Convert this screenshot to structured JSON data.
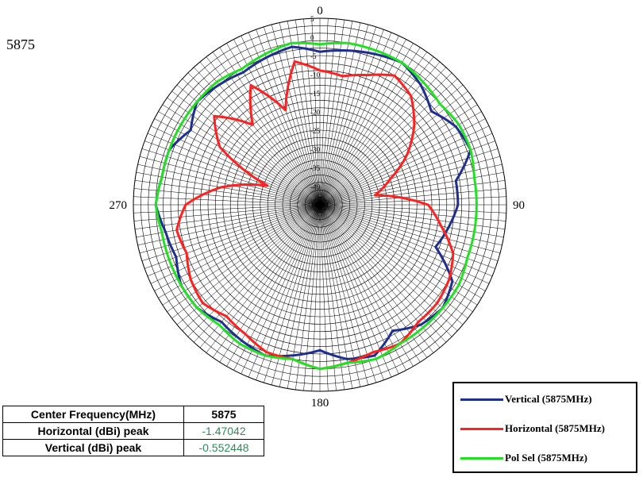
{
  "header": {
    "frequency_label": "5875"
  },
  "chart_data": {
    "type": "polar-line",
    "angle_labels": [
      "0",
      "90",
      "180",
      "270"
    ],
    "radial_tick_labels": [
      "5",
      "0",
      "-5",
      "-10",
      "-15",
      "-20",
      "-25",
      "-30",
      "-35",
      "-40"
    ],
    "r_range_dBi": [
      -45,
      5
    ],
    "angle_direction": "clockwise",
    "zero_at": "top",
    "grid": true,
    "legend_placement": "bottom-right",
    "angles_deg": [
      0,
      10,
      20,
      30,
      40,
      50,
      60,
      70,
      80,
      90,
      100,
      110,
      120,
      130,
      140,
      150,
      160,
      170,
      180,
      190,
      200,
      210,
      220,
      230,
      240,
      250,
      260,
      270,
      280,
      290,
      300,
      310,
      320,
      330,
      340,
      350
    ],
    "series": [
      {
        "name": "Vertical (5875MHz)",
        "color": "#1f2f8f",
        "values": [
          -4,
          -3,
          -2,
          -1,
          -3,
          -6,
          -3,
          -2,
          -8,
          -8,
          -10,
          -12,
          -4,
          -2,
          -3,
          -6,
          -2,
          -3,
          -6,
          -4,
          -2,
          -3,
          -4,
          -2,
          -2,
          -4,
          -3,
          -1,
          -2,
          -2,
          -5,
          -2,
          -3,
          -4,
          -3,
          -2
        ]
      },
      {
        "name": "Horizontal (5875MHz)",
        "color": "#ff2020",
        "values": [
          -9,
          -10,
          -8,
          -5,
          -7,
          -12,
          -18,
          -25,
          -30,
          -16,
          -12,
          -7,
          -5,
          -4,
          -4,
          -2,
          -3,
          -2,
          -1,
          -3,
          -3,
          -5,
          -6,
          -4,
          -5,
          -7,
          -6,
          -9,
          -18,
          -30,
          -14,
          -8,
          -17,
          -8,
          -18,
          -6
        ]
      },
      {
        "name": "Pol Sel (5875MHz)",
        "color": "#22e022",
        "values": [
          -2,
          -1,
          -1,
          -1,
          -2,
          -3,
          -2,
          -2,
          -3,
          -3,
          -3,
          -3,
          -2,
          -2,
          -2,
          -2,
          -1,
          -2,
          -1,
          -3,
          -2,
          -2,
          -3,
          -2,
          -2,
          -2,
          -2,
          -1,
          -2,
          -2,
          -2,
          -2,
          -2,
          -3,
          -2,
          -1
        ]
      }
    ]
  },
  "info_table": {
    "rows": [
      {
        "label": "Center Frequency(MHz)",
        "value": "5875"
      },
      {
        "label": "Horizontal (dBi) peak",
        "value": "-1.47042"
      },
      {
        "label": "Vertical (dBi) peak",
        "value": "-0.552448"
      }
    ]
  }
}
